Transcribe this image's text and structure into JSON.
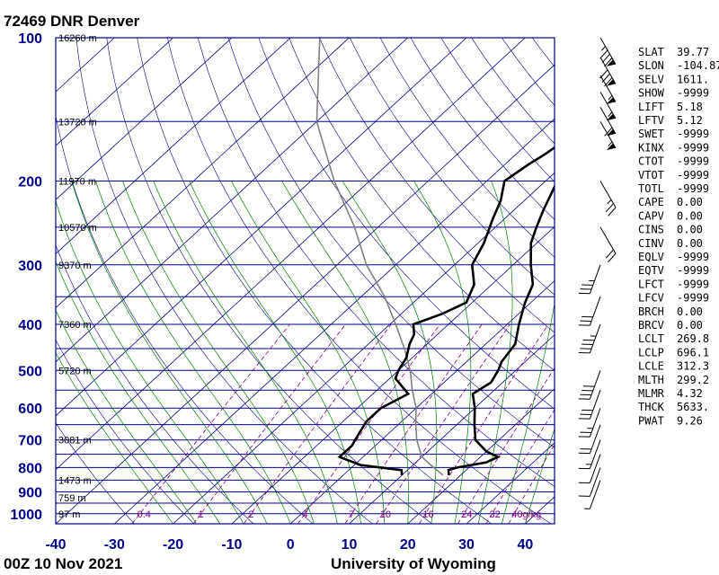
{
  "header": {
    "title": "72469 DNR Denver"
  },
  "footer": {
    "date": "00Z 10 Nov 2021",
    "source": "University of Wyoming"
  },
  "colors": {
    "frame": "#00008b",
    "isotherm": "#00008b",
    "dry_adiabat": "#00008b",
    "moist_adiabat": "#008000",
    "mixing_ratio": "#800080",
    "temperature": "#000000",
    "dewpoint": "#000000",
    "parcel": "#808080",
    "text_pressure": "#00008b"
  },
  "chart_data": {
    "type": "skew-t log-p sounding",
    "title": "72469 DNR Denver",
    "x_axis": {
      "label": "",
      "min": -40,
      "max": 45,
      "ticks": [
        "-40",
        "-30",
        "-20",
        "-10",
        "0",
        "10",
        "20",
        "30",
        "40"
      ]
    },
    "y_axis": {
      "label": "",
      "scale": "log",
      "min": 100,
      "max": 1050,
      "ticks": [
        "100",
        "200",
        "300",
        "400",
        "500",
        "600",
        "700",
        "800",
        "900",
        "1000"
      ]
    },
    "height_labels": [
      {
        "p": 100,
        "text": "16260 m"
      },
      {
        "p": 150,
        "text": "13720 m"
      },
      {
        "p": 200,
        "text": "11970 m"
      },
      {
        "p": 250,
        "text": "10570 m"
      },
      {
        "p": 300,
        "text": "9370 m"
      },
      {
        "p": 400,
        "text": "7360 m"
      },
      {
        "p": 500,
        "text": "5720 m"
      },
      {
        "p": 700,
        "text": "3081 m"
      },
      {
        "p": 850,
        "text": "1473 m"
      },
      {
        "p": 925,
        "text": "759 m"
      },
      {
        "p": 1000,
        "text": "97 m"
      }
    ],
    "mixing_ratio_labels": [
      {
        "w": 0.4,
        "text": "0.4"
      },
      {
        "w": 1,
        "text": "1"
      },
      {
        "w": 2,
        "text": "2"
      },
      {
        "w": 4,
        "text": "4"
      },
      {
        "w": 7,
        "text": "7"
      },
      {
        "w": 10,
        "text": "10"
      },
      {
        "w": 16,
        "text": "16"
      },
      {
        "w": 24,
        "text": "24"
      },
      {
        "w": 32,
        "text": "32"
      },
      {
        "w": 40,
        "text": "40g/kg"
      }
    ],
    "temperature_profile": [
      [
        830,
        18
      ],
      [
        810,
        17
      ],
      [
        800,
        18
      ],
      [
        780,
        22
      ],
      [
        760,
        23
      ],
      [
        740,
        20
      ],
      [
        700,
        16
      ],
      [
        650,
        13
      ],
      [
        600,
        10
      ],
      [
        560,
        7
      ],
      [
        530,
        8
      ],
      [
        500,
        7
      ],
      [
        480,
        6
      ],
      [
        440,
        5
      ],
      [
        400,
        2
      ],
      [
        360,
        -1
      ],
      [
        330,
        -3
      ],
      [
        300,
        -7
      ],
      [
        270,
        -11
      ],
      [
        250,
        -13
      ],
      [
        230,
        -15
      ],
      [
        200,
        -18
      ],
      [
        185,
        -17
      ],
      [
        175,
        -12
      ],
      [
        160,
        -8
      ],
      [
        150,
        -6
      ],
      [
        140,
        -6
      ],
      [
        130,
        -5
      ],
      [
        120,
        -6
      ],
      [
        110,
        -5
      ],
      [
        100,
        -9
      ]
    ],
    "dewpoint_profile": [
      [
        830,
        10
      ],
      [
        810,
        9
      ],
      [
        790,
        1
      ],
      [
        760,
        -4
      ],
      [
        720,
        -4
      ],
      [
        680,
        -5
      ],
      [
        640,
        -6
      ],
      [
        600,
        -6
      ],
      [
        560,
        -4
      ],
      [
        520,
        -9
      ],
      [
        500,
        -10
      ],
      [
        470,
        -11
      ],
      [
        440,
        -13
      ],
      [
        420,
        -14
      ],
      [
        400,
        -16
      ],
      [
        380,
        -13
      ],
      [
        360,
        -11
      ],
      [
        330,
        -13
      ],
      [
        300,
        -17
      ],
      [
        270,
        -19
      ],
      [
        240,
        -22
      ],
      [
        220,
        -24
      ],
      [
        200,
        -27
      ],
      [
        185,
        -26
      ],
      [
        175,
        -25
      ],
      [
        160,
        -24
      ],
      [
        150,
        -23
      ],
      [
        140,
        -25
      ],
      [
        125,
        -25
      ],
      [
        110,
        -26
      ],
      [
        100,
        -27
      ]
    ],
    "parcel_profile": [
      [
        830,
        17
      ],
      [
        800,
        14
      ],
      [
        760,
        10
      ],
      [
        700,
        6
      ],
      [
        650,
        3
      ],
      [
        600,
        0
      ],
      [
        550,
        -4
      ],
      [
        500,
        -8
      ],
      [
        450,
        -13
      ],
      [
        400,
        -19
      ],
      [
        350,
        -26
      ],
      [
        300,
        -35
      ],
      [
        250,
        -44
      ],
      [
        200,
        -56
      ],
      [
        150,
        -70
      ],
      [
        100,
        -85
      ]
    ],
    "wind_barbs": [
      {
        "p": 100,
        "speed_kt": 85
      },
      {
        "p": 110,
        "speed_kt": 80
      },
      {
        "p": 120,
        "speed_kt": 55
      },
      {
        "p": 130,
        "speed_kt": 55
      },
      {
        "p": 140,
        "speed_kt": 60
      },
      {
        "p": 150,
        "speed_kt": 55
      },
      {
        "p": 200,
        "speed_kt": 25
      },
      {
        "p": 250,
        "speed_kt": 20
      },
      {
        "p": 300,
        "speed_kt": 35
      },
      {
        "p": 350,
        "speed_kt": 30
      },
      {
        "p": 400,
        "speed_kt": 45
      },
      {
        "p": 500,
        "speed_kt": 40
      },
      {
        "p": 550,
        "speed_kt": 30
      },
      {
        "p": 600,
        "speed_kt": 25
      },
      {
        "p": 650,
        "speed_kt": 20
      },
      {
        "p": 700,
        "speed_kt": 15
      },
      {
        "p": 750,
        "speed_kt": 10
      },
      {
        "p": 800,
        "speed_kt": 10
      },
      {
        "p": 850,
        "speed_kt": 5
      }
    ]
  },
  "indices": [
    {
      "name": "SLAT",
      "value": "39.77"
    },
    {
      "name": "SLON",
      "value": "-104.87"
    },
    {
      "name": "SELV",
      "value": "1611."
    },
    {
      "name": "SHOW",
      "value": "-9999"
    },
    {
      "name": "LIFT",
      "value": "5.18"
    },
    {
      "name": "LFTV",
      "value": "5.12"
    },
    {
      "name": "SWET",
      "value": "-9999"
    },
    {
      "name": "KINX",
      "value": "-9999"
    },
    {
      "name": "CTOT",
      "value": "-9999"
    },
    {
      "name": "VTOT",
      "value": "-9999"
    },
    {
      "name": "TOTL",
      "value": "-9999"
    },
    {
      "name": "CAPE",
      "value": "0.00"
    },
    {
      "name": "CAPV",
      "value": "0.00"
    },
    {
      "name": "CINS",
      "value": "0.00"
    },
    {
      "name": "CINV",
      "value": "0.00"
    },
    {
      "name": "EQLV",
      "value": "-9999"
    },
    {
      "name": "EQTV",
      "value": "-9999"
    },
    {
      "name": "LFCT",
      "value": "-9999"
    },
    {
      "name": "LFCV",
      "value": "-9999"
    },
    {
      "name": "BRCH",
      "value": "0.00"
    },
    {
      "name": "BRCV",
      "value": "0.00"
    },
    {
      "name": "LCLT",
      "value": "269.8"
    },
    {
      "name": "LCLP",
      "value": "696.1"
    },
    {
      "name": "LCLE",
      "value": "312.3"
    },
    {
      "name": "MLTH",
      "value": "299.2"
    },
    {
      "name": "MLMR",
      "value": "4.32"
    },
    {
      "name": "THCK",
      "value": "5633."
    },
    {
      "name": "PWAT",
      "value": "9.26"
    }
  ]
}
